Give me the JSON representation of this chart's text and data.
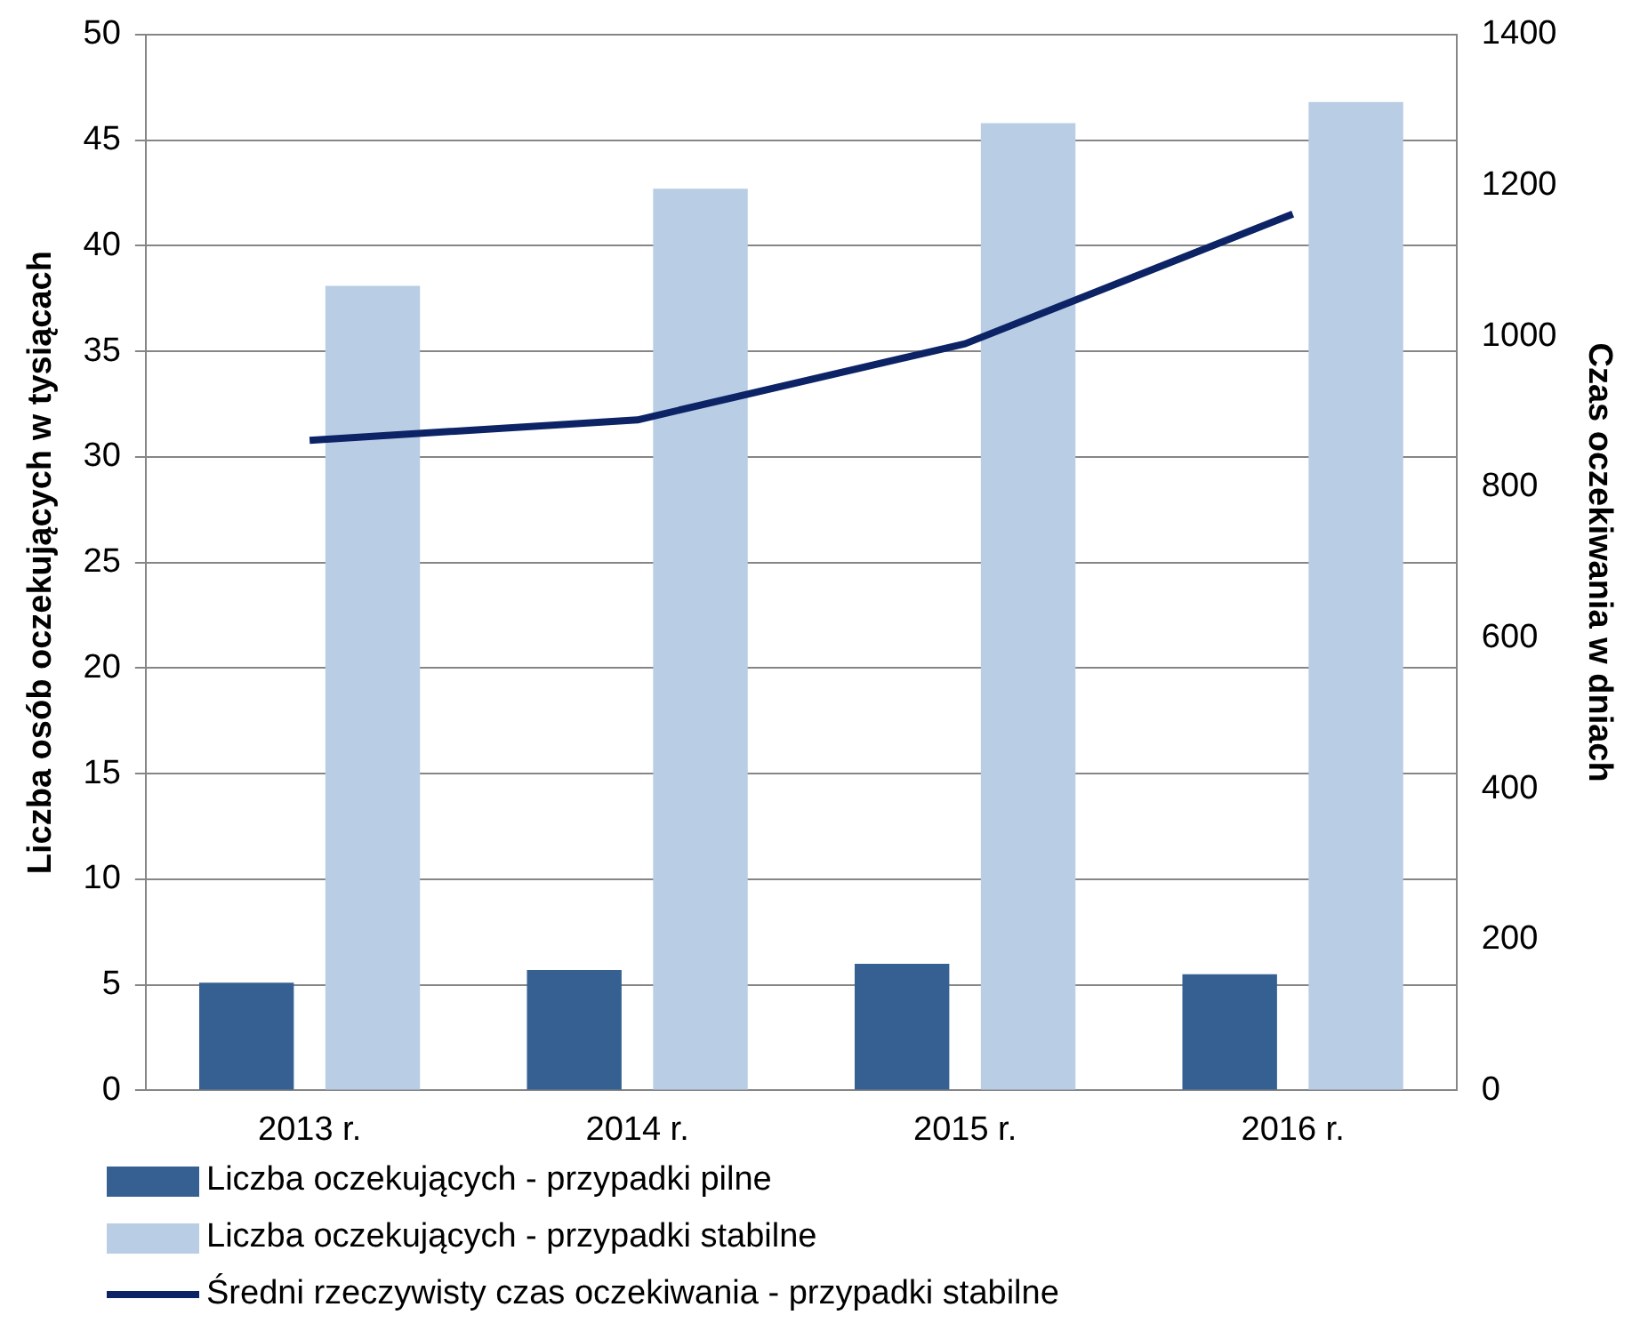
{
  "chart_data": {
    "type": "bar",
    "xlabel": null,
    "ylabel": "Liczba osób oczekujących w tysiącach",
    "y2label": "Czas oczekiwania w dniach",
    "categories": [
      "2013 r.",
      "2014 r.",
      "2015 r.",
      "2016 r."
    ],
    "series": [
      {
        "name": "Liczba oczekujących - przypadki pilne",
        "color": "#376092",
        "values": [
          5.1,
          5.7,
          6.0,
          5.5
        ]
      },
      {
        "name": "Liczba oczekujących - przypadki stabilne",
        "color": "#b9cde5",
        "values": [
          38.1,
          42.7,
          45.8,
          46.8
        ]
      },
      {
        "name": "Średni rzeczywisty czas oczekiwania - przypadki stabilne",
        "type": "line",
        "axis": "y2",
        "color": "#0c2366",
        "values": [
          862,
          889,
          990,
          1162
        ]
      }
    ],
    "ylim": [
      0,
      50
    ],
    "yticks": [
      0,
      5,
      10,
      15,
      20,
      25,
      30,
      35,
      40,
      45,
      50
    ],
    "y2lim": [
      0,
      1400
    ],
    "y2ticks": [
      0,
      200,
      400,
      600,
      800,
      1000,
      1200,
      1400
    ],
    "grid": "y",
    "legend": "bottom",
    "marker": "none",
    "line_style": "solid"
  }
}
